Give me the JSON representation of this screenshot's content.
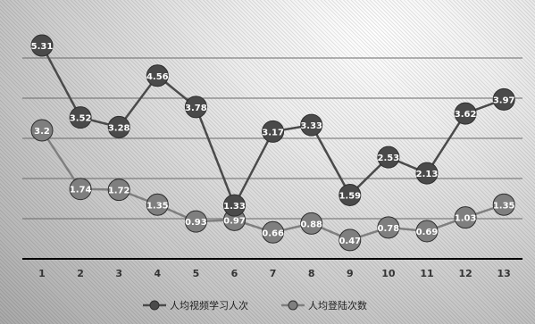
{
  "chart_data": {
    "type": "line",
    "categories": [
      "1",
      "2",
      "3",
      "4",
      "5",
      "6",
      "7",
      "8",
      "9",
      "10",
      "11",
      "12",
      "13"
    ],
    "series": [
      {
        "name": "人均视频学习人次",
        "values": [
          5.31,
          3.52,
          3.28,
          4.56,
          3.78,
          1.33,
          3.17,
          3.33,
          1.59,
          2.53,
          2.13,
          3.62,
          3.97
        ],
        "labels": [
          "5.31",
          "3.52",
          "3.28",
          "4.56",
          "3.78",
          "1.33",
          "3.17",
          "3.33",
          "1.59",
          "2.53",
          "2.13",
          "3.62",
          "3.97"
        ],
        "color": "#4a4a4a"
      },
      {
        "name": "人均登陆次数",
        "values": [
          3.2,
          1.74,
          1.72,
          1.35,
          0.93,
          0.97,
          0.66,
          0.88,
          0.47,
          0.78,
          0.69,
          1.03,
          1.35
        ],
        "labels": [
          "3.2",
          "1.74",
          "1.72",
          "1.35",
          "0.93",
          "0.97",
          "0.66",
          "0.88",
          "0.47",
          "0.78",
          "0.69",
          "1.03",
          "1.35"
        ],
        "color": "#7f7f7f"
      }
    ],
    "ylim": [
      0,
      6
    ],
    "grid": true,
    "legend_position": "bottom"
  }
}
